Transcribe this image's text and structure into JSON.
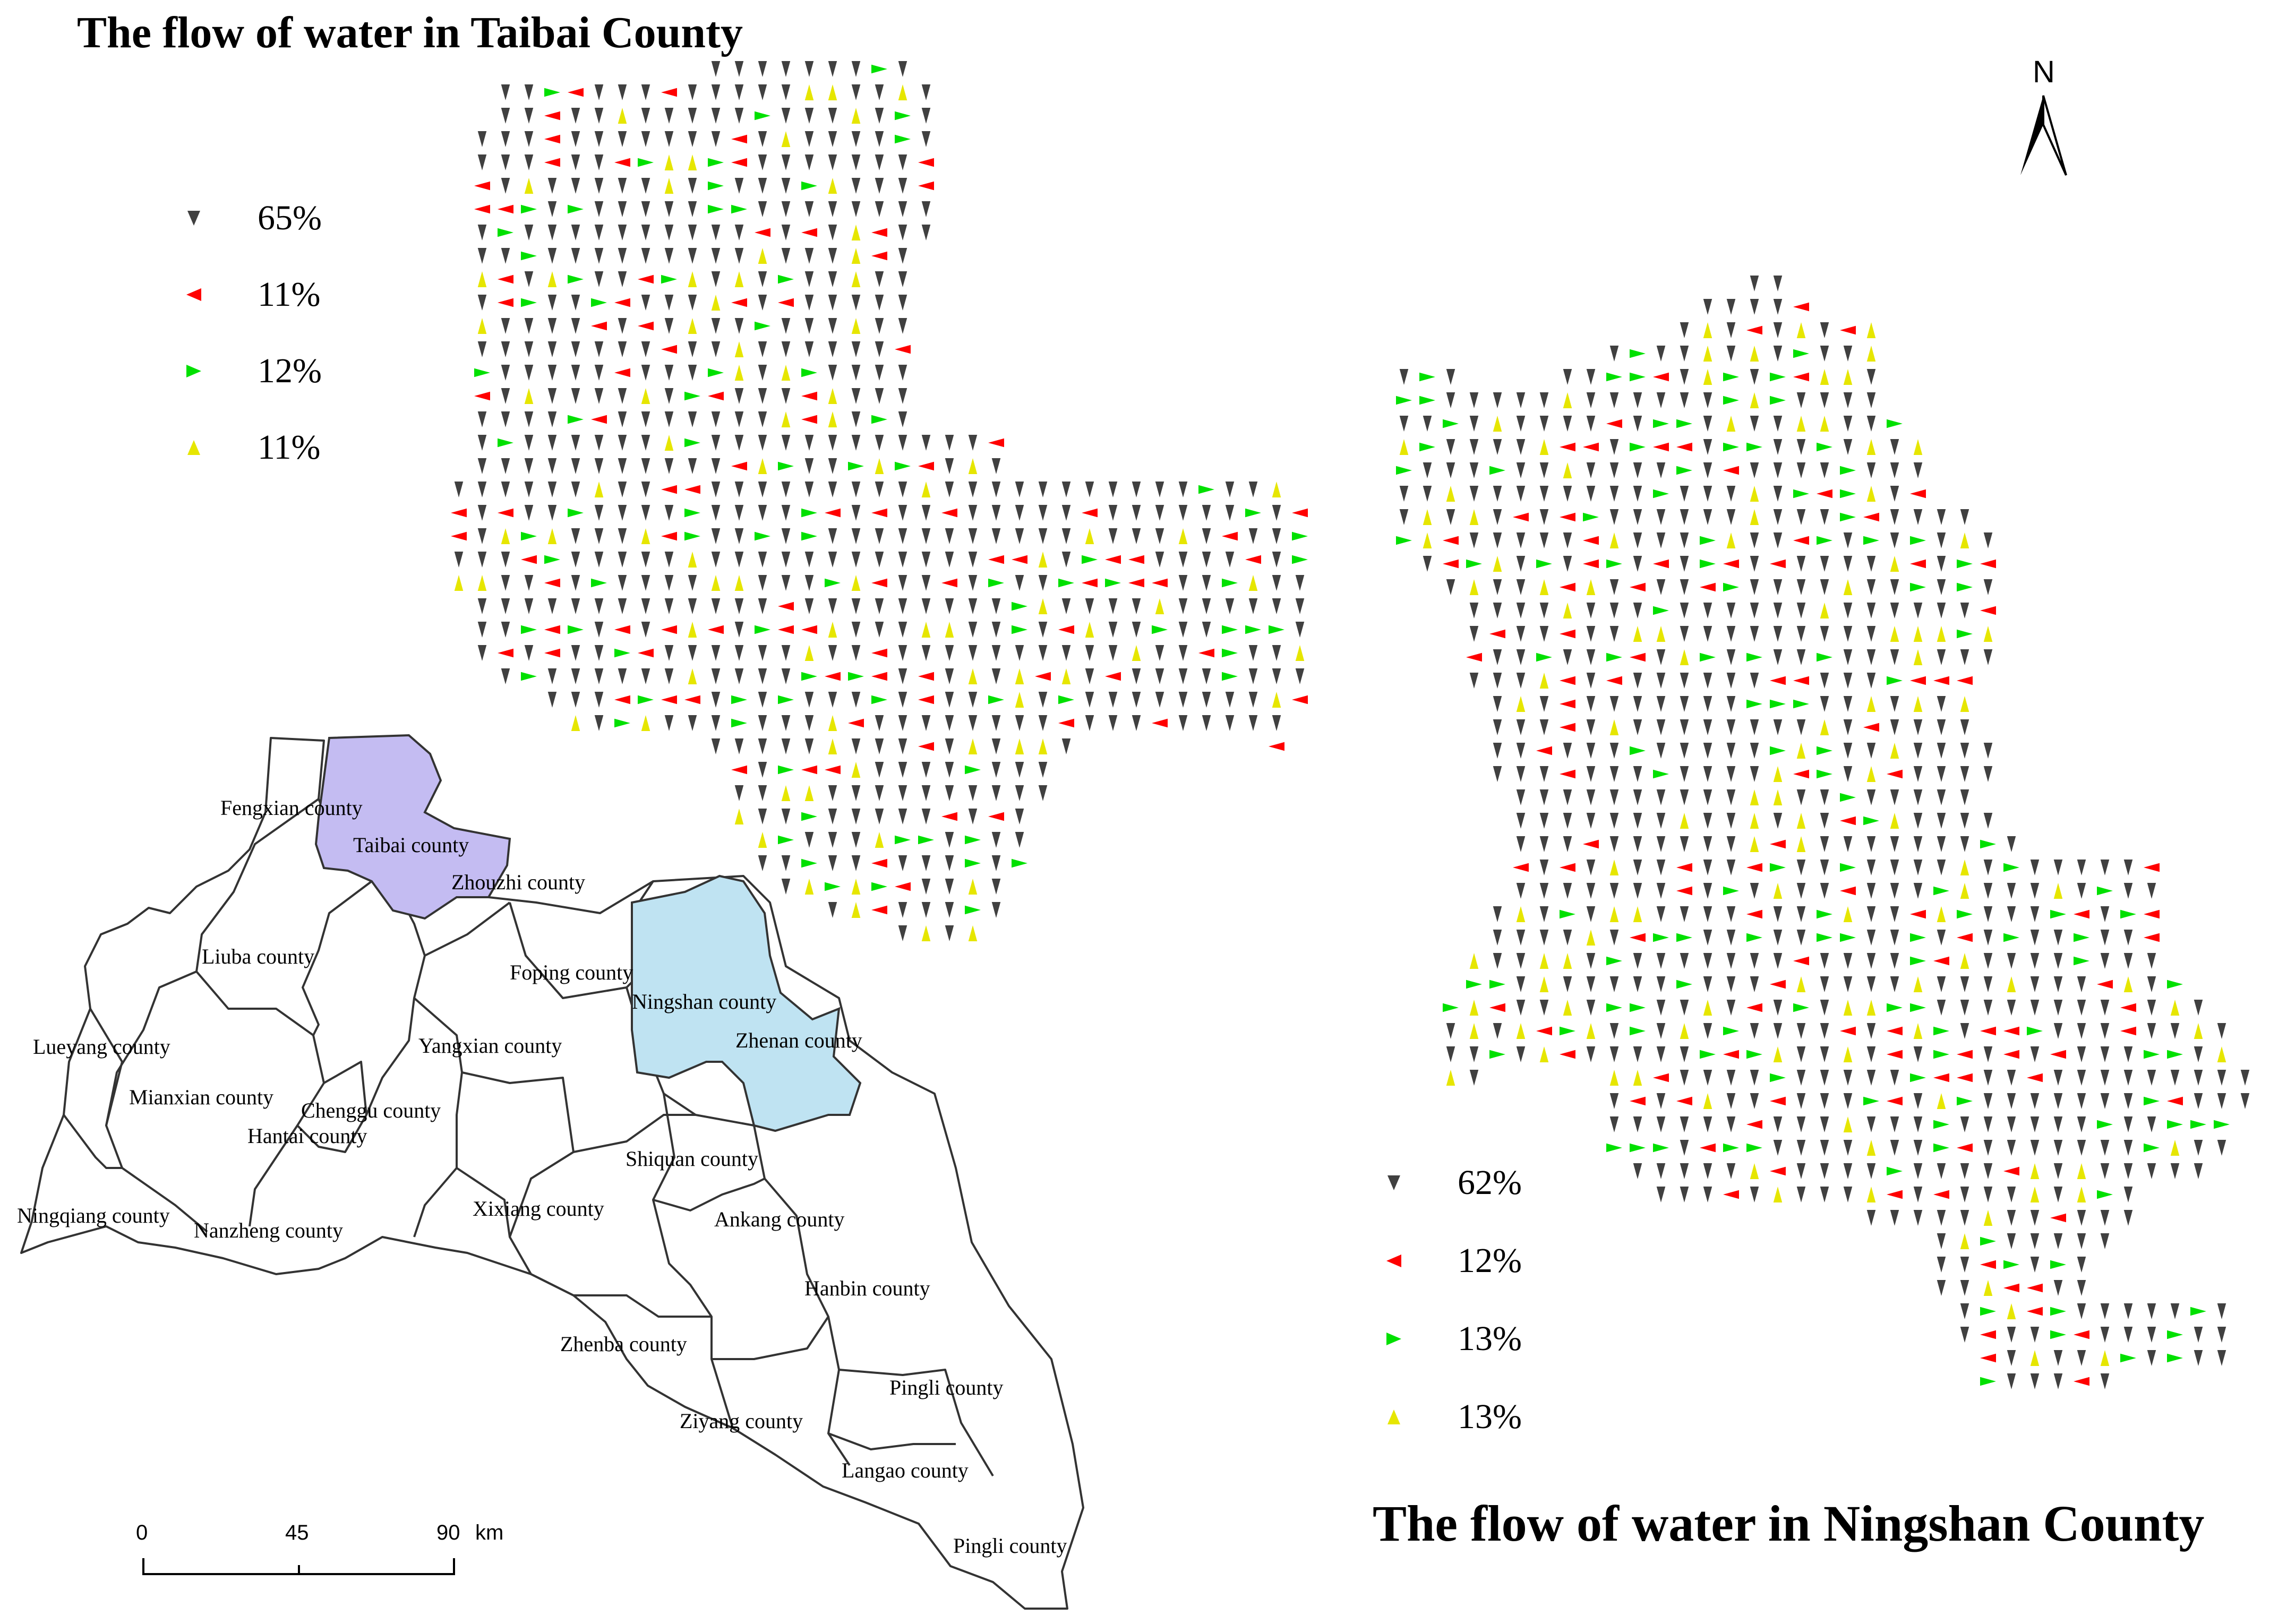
{
  "titles": {
    "taibai": "The flow of water in Taibai County",
    "ningshan": "The flow of water in Ningshan County"
  },
  "north_label": "N",
  "colors": {
    "down": "#404040",
    "left": "#ff0000",
    "right": "#00e000",
    "up": "#e6e600",
    "taibai_fill": "#c4bcf2",
    "ningshan_fill": "#bfe3f2"
  },
  "legend_taibai": [
    {
      "direction": "down",
      "label": "65%"
    },
    {
      "direction": "left",
      "label": "11%"
    },
    {
      "direction": "right",
      "label": "12%"
    },
    {
      "direction": "up",
      "label": "11%"
    }
  ],
  "legend_ningshan": [
    {
      "direction": "down",
      "label": "62%"
    },
    {
      "direction": "left",
      "label": "12%"
    },
    {
      "direction": "right",
      "label": "13%"
    },
    {
      "direction": "up",
      "label": "13%"
    }
  ],
  "counties": [
    "Fengxian county",
    "Taibai county",
    "Zhouzhi county",
    "Liuba county",
    "Foping county",
    "Ningshan county",
    "Lueyang county",
    "Yangxian county",
    "Zhenan county",
    "Mianxian county",
    "Chenggu county",
    "Hantai county",
    "Shiquan county",
    "Xixiang county",
    "Ningqiang county",
    "Nanzheng county",
    "Ankang county",
    "Hanbin county",
    "Zhenba county",
    "Pingli county",
    "Ziyang county",
    "Langao county",
    "Pingli county"
  ],
  "scale_bar": {
    "ticks": [
      "0",
      "45",
      "90"
    ],
    "unit": "km"
  }
}
